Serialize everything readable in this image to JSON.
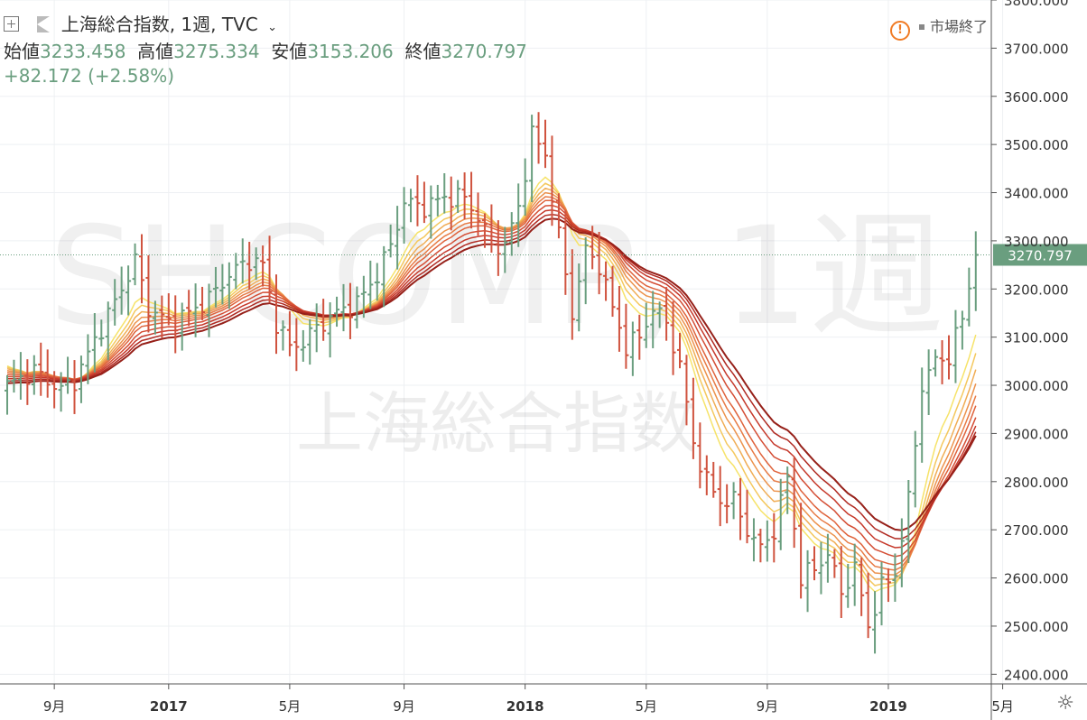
{
  "header": {
    "symbol_title": "上海総合指数, 1週, TVC",
    "dropdown_icon": "chevron-down-icon",
    "open_label": "始値",
    "open_value": "3233.458",
    "high_label": "高値",
    "high_value": "3275.334",
    "low_label": "安値",
    "low_value": "3153.206",
    "close_label": "終値",
    "close_value": "3270.797",
    "change": "+82.172 (+2.58%)"
  },
  "status": {
    "icon": "warning-icon",
    "text": "市場終了"
  },
  "watermark": {
    "symbol": "SHCOMP, 1週",
    "name": "上海総合指数"
  },
  "colors": {
    "up": "#6a9e7f",
    "down": "#d0533f",
    "price_line": "#6a9e7f",
    "ribbon": [
      "#f6e36a",
      "#f4c85e",
      "#f0ad55",
      "#ec924c",
      "#e77a44",
      "#df633c",
      "#d44d34",
      "#c6392b",
      "#b02a22",
      "#962019"
    ]
  },
  "chart_data": {
    "type": "ohlc",
    "timeframe": "1週",
    "yaxis": {
      "min": 2380,
      "max": 3800,
      "ticks": [
        "2400.000",
        "2500.000",
        "2600.000",
        "2700.000",
        "2800.000",
        "2900.000",
        "3000.000",
        "3100.000",
        "3200.000",
        "3300.000",
        "3400.000",
        "3500.000",
        "3600.000",
        "3700.000",
        "3800.000"
      ]
    },
    "xaxis": {
      "ticks": [
        {
          "label": "9月",
          "i": 7
        },
        {
          "label": "2017",
          "i": 24
        },
        {
          "label": "5月",
          "i": 42
        },
        {
          "label": "9月",
          "i": 59
        },
        {
          "label": "2018",
          "i": 77
        },
        {
          "label": "5月",
          "i": 95
        },
        {
          "label": "9月",
          "i": 113
        },
        {
          "label": "2019",
          "i": 131
        },
        {
          "label": "5月",
          "i": 148
        }
      ]
    },
    "last_price": "3270.797",
    "anchors": [
      [
        0,
        3000
      ],
      [
        4,
        3030
      ],
      [
        8,
        2990
      ],
      [
        10,
        3010
      ],
      [
        14,
        3120
      ],
      [
        17,
        3200
      ],
      [
        19,
        3260
      ],
      [
        21,
        3160
      ],
      [
        24,
        3130
      ],
      [
        27,
        3150
      ],
      [
        30,
        3180
      ],
      [
        33,
        3230
      ],
      [
        36,
        3260
      ],
      [
        38,
        3250
      ],
      [
        40,
        3130
      ],
      [
        42,
        3080
      ],
      [
        44,
        3090
      ],
      [
        46,
        3120
      ],
      [
        49,
        3150
      ],
      [
        52,
        3170
      ],
      [
        55,
        3230
      ],
      [
        57,
        3290
      ],
      [
        59,
        3380
      ],
      [
        62,
        3370
      ],
      [
        65,
        3390
      ],
      [
        68,
        3390
      ],
      [
        70,
        3350
      ],
      [
        72,
        3290
      ],
      [
        74,
        3290
      ],
      [
        76,
        3370
      ],
      [
        78,
        3520
      ],
      [
        80,
        3480
      ],
      [
        82,
        3310
      ],
      [
        84,
        3150
      ],
      [
        86,
        3280
      ],
      [
        88,
        3250
      ],
      [
        90,
        3160
      ],
      [
        92,
        3080
      ],
      [
        94,
        3100
      ],
      [
        96,
        3160
      ],
      [
        98,
        3130
      ],
      [
        100,
        3040
      ],
      [
        102,
        2880
      ],
      [
        104,
        2800
      ],
      [
        106,
        2760
      ],
      [
        108,
        2760
      ],
      [
        110,
        2700
      ],
      [
        112,
        2660
      ],
      [
        114,
        2700
      ],
      [
        116,
        2810
      ],
      [
        118,
        2600
      ],
      [
        120,
        2620
      ],
      [
        122,
        2650
      ],
      [
        124,
        2570
      ],
      [
        126,
        2620
      ],
      [
        128,
        2500
      ],
      [
        130,
        2580
      ],
      [
        132,
        2610
      ],
      [
        134,
        2760
      ],
      [
        136,
        3000
      ],
      [
        138,
        3050
      ],
      [
        140,
        3060
      ],
      [
        142,
        3140
      ],
      [
        144,
        3270
      ]
    ]
  }
}
